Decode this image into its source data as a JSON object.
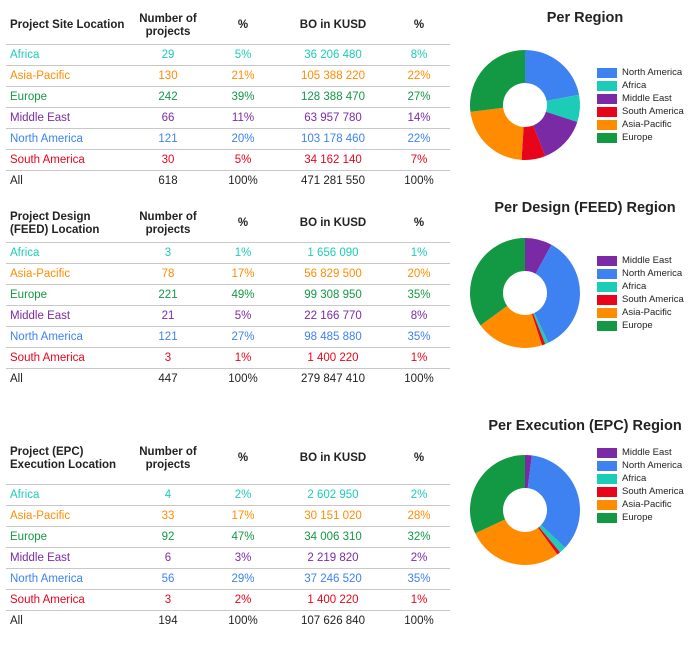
{
  "colors": {
    "Africa": "#1dccb6",
    "Asia-Pacific": "#ff8c00",
    "Europe": "#139844",
    "Middle East": "#7b2aa6",
    "North America": "#3d82f0",
    "South America": "#e8051c",
    "All": "#222222"
  },
  "tables": [
    {
      "header": {
        "location": "Project Site Location",
        "number": "Number of projects",
        "pct1": "%",
        "bo": "BO in KUSD",
        "pct2": "%"
      },
      "rows": [
        {
          "region": "Africa",
          "number": "29",
          "pct1": "5%",
          "bo": "36 206 480",
          "pct2": "8%"
        },
        {
          "region": "Asia-Pacific",
          "number": "130",
          "pct1": "21%",
          "bo": "105 388 220",
          "pct2": "22%"
        },
        {
          "region": "Europe",
          "number": "242",
          "pct1": "39%",
          "bo": "128 388 470",
          "pct2": "27%"
        },
        {
          "region": "Middle East",
          "number": "66",
          "pct1": "11%",
          "bo": "63 957 780",
          "pct2": "14%"
        },
        {
          "region": "North America",
          "number": "121",
          "pct1": "20%",
          "bo": "103 178 460",
          "pct2": "22%"
        },
        {
          "region": "South America",
          "number": "30",
          "pct1": "5%",
          "bo": "34 162 140",
          "pct2": "7%"
        },
        {
          "region": "All",
          "number": "618",
          "pct1": "100%",
          "bo": "471 281 550",
          "pct2": "100%"
        }
      ]
    },
    {
      "header": {
        "location": "Project Design (FEED) Location",
        "number": "Number of projects",
        "pct1": "%",
        "bo": "BO in KUSD",
        "pct2": "%"
      },
      "rows": [
        {
          "region": "Africa",
          "number": "3",
          "pct1": "1%",
          "bo": "1 656 090",
          "pct2": "1%"
        },
        {
          "region": "Asia-Pacific",
          "number": "78",
          "pct1": "17%",
          "bo": "56 829 500",
          "pct2": "20%"
        },
        {
          "region": "Europe",
          "number": "221",
          "pct1": "49%",
          "bo": "99 308 950",
          "pct2": "35%"
        },
        {
          "region": "Middle East",
          "number": "21",
          "pct1": "5%",
          "bo": "22 166 770",
          "pct2": "8%"
        },
        {
          "region": "North America",
          "number": "121",
          "pct1": "27%",
          "bo": "98 485 880",
          "pct2": "35%"
        },
        {
          "region": "South America",
          "number": "3",
          "pct1": "1%",
          "bo": "1 400 220",
          "pct2": "1%"
        },
        {
          "region": "All",
          "number": "447",
          "pct1": "100%",
          "bo": "279 847 410",
          "pct2": "100%"
        }
      ]
    },
    {
      "header": {
        "location": "Project (EPC) Execution Location",
        "number": "Number of projects",
        "pct1": "%",
        "bo": "BO in KUSD",
        "pct2": "%"
      },
      "rows": [
        {
          "region": "Africa",
          "number": "4",
          "pct1": "2%",
          "bo": "2 602 950",
          "pct2": "2%"
        },
        {
          "region": "Asia-Pacific",
          "number": "33",
          "pct1": "17%",
          "bo": "30 151 020",
          "pct2": "28%"
        },
        {
          "region": "Europe",
          "number": "92",
          "pct1": "47%",
          "bo": "34 006 310",
          "pct2": "32%"
        },
        {
          "region": "Middle East",
          "number": "6",
          "pct1": "3%",
          "bo": "2 219 820",
          "pct2": "2%"
        },
        {
          "region": "North America",
          "number": "56",
          "pct1": "29%",
          "bo": "37 246 520",
          "pct2": "35%"
        },
        {
          "region": "South America",
          "number": "3",
          "pct1": "2%",
          "bo": "1 400 220",
          "pct2": "1%"
        },
        {
          "region": "All",
          "number": "194",
          "pct1": "100%",
          "bo": "107 626 840",
          "pct2": "100%"
        }
      ]
    }
  ],
  "chart_data": [
    {
      "type": "pie",
      "title": "Per Region",
      "legend_position": "right",
      "legend": [
        "North America",
        "Africa",
        "Middle East",
        "South America",
        "Asia-Pacific",
        "Europe"
      ],
      "slices": [
        {
          "label": "North America",
          "value": 22
        },
        {
          "label": "Africa",
          "value": 8
        },
        {
          "label": "Middle East",
          "value": 14
        },
        {
          "label": "South America",
          "value": 7
        },
        {
          "label": "Asia-Pacific",
          "value": 22
        },
        {
          "label": "Europe",
          "value": 27
        }
      ]
    },
    {
      "type": "pie",
      "title": "Per Design (FEED) Region",
      "legend_position": "right",
      "legend": [
        "Middle East",
        "North America",
        "Africa",
        "South America",
        "Asia-Pacific",
        "Europe"
      ],
      "slices": [
        {
          "label": "Middle East",
          "value": 8
        },
        {
          "label": "North America",
          "value": 35
        },
        {
          "label": "Africa",
          "value": 1
        },
        {
          "label": "South America",
          "value": 1
        },
        {
          "label": "Asia-Pacific",
          "value": 20
        },
        {
          "label": "Europe",
          "value": 35
        }
      ]
    },
    {
      "type": "pie",
      "title": "Per Execution (EPC) Region",
      "legend_position": "right",
      "legend": [
        "Middle East",
        "North America",
        "Africa",
        "South America",
        "Asia-Pacific",
        "Europe"
      ],
      "slices": [
        {
          "label": "Middle East",
          "value": 2
        },
        {
          "label": "North America",
          "value": 35
        },
        {
          "label": "Africa",
          "value": 2
        },
        {
          "label": "South America",
          "value": 1
        },
        {
          "label": "Asia-Pacific",
          "value": 28
        },
        {
          "label": "Europe",
          "value": 32
        }
      ]
    }
  ]
}
